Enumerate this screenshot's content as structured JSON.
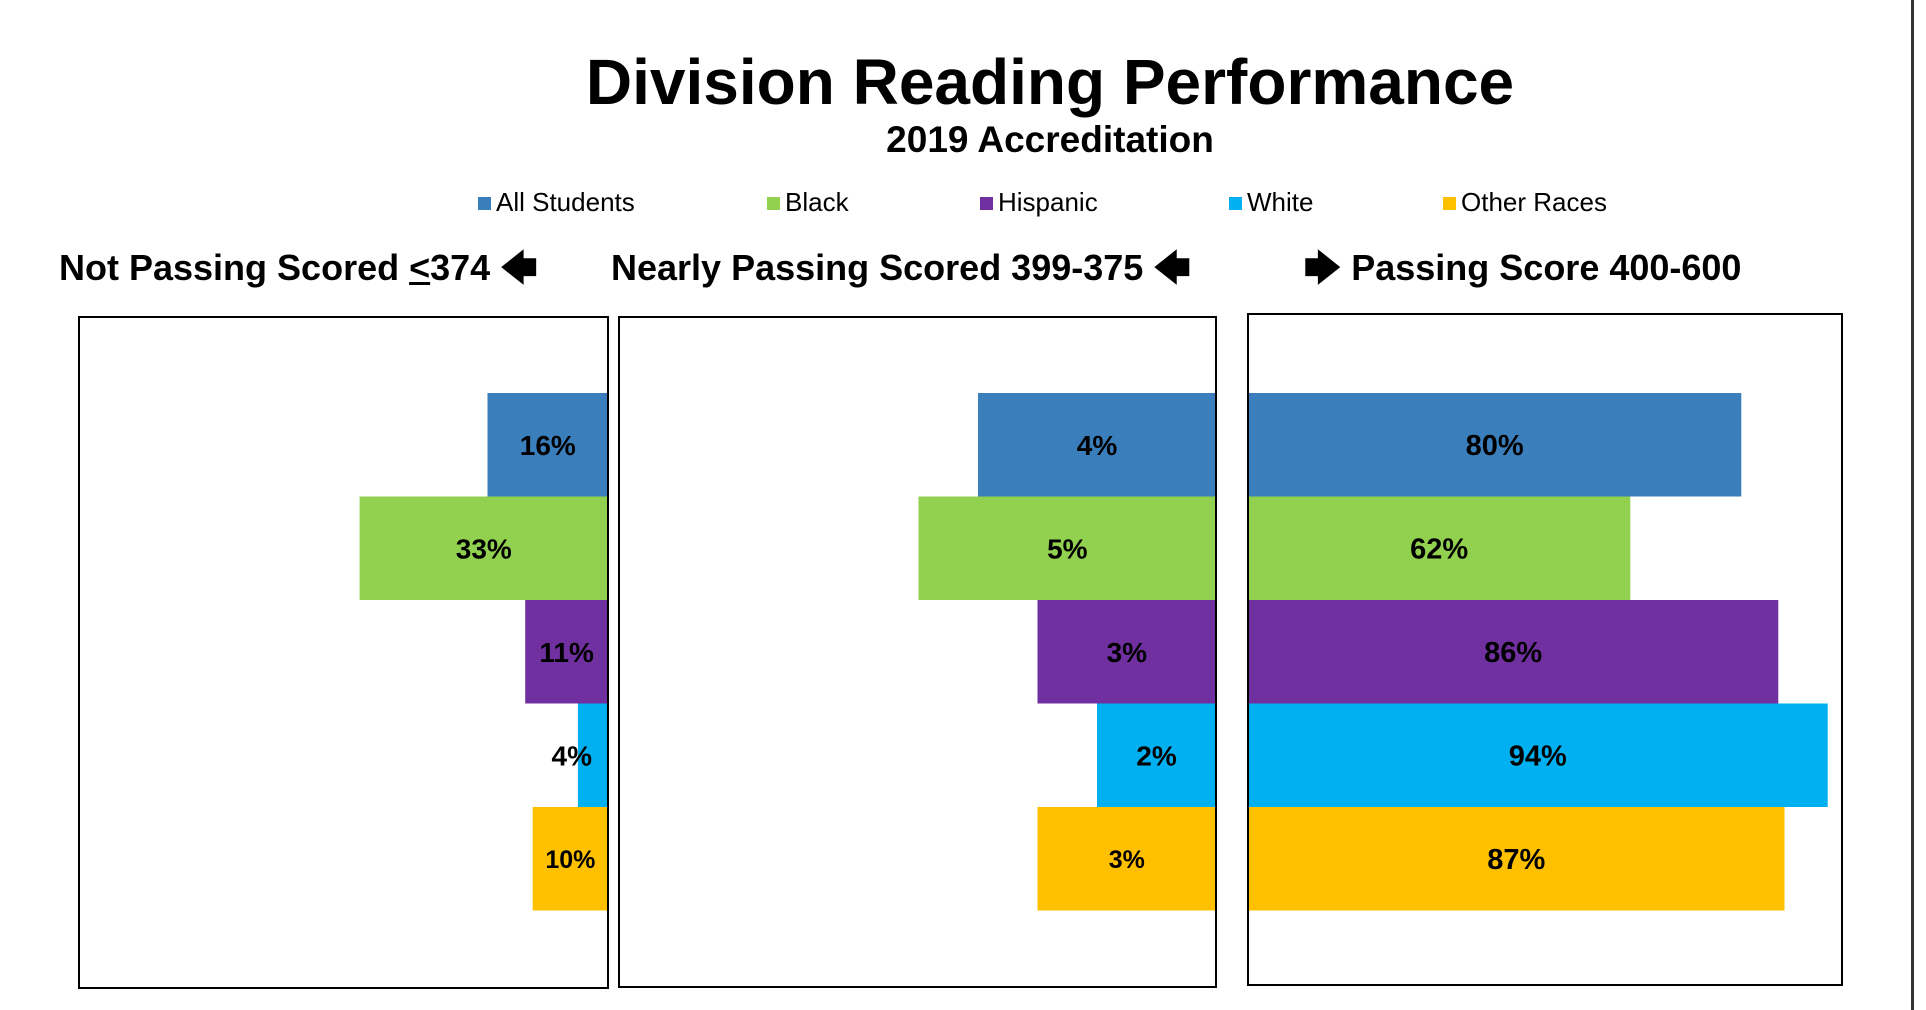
{
  "chart_data": {
    "type": "bar",
    "title": "Division Reading Performance",
    "subtitle": "2019 Accreditation",
    "categories": [
      "All Students",
      "Black",
      "Hispanic",
      "White",
      "Other Races"
    ],
    "legend": [
      {
        "name": "All Students",
        "color": "#3A7EBB"
      },
      {
        "name": "Black",
        "color": "#92D050"
      },
      {
        "name": "Hispanic",
        "color": "#7030A0"
      },
      {
        "name": "White",
        "color": "#00B0F0"
      },
      {
        "name": "Other Races",
        "color": "#FFC000"
      }
    ],
    "panels": [
      {
        "heading_pre": "Not Passing Scored ",
        "heading_underlined": "<",
        "heading_post": "374",
        "arrow": "🡄",
        "direction": "left",
        "values": [
          16,
          33,
          11,
          4,
          10
        ],
        "labels": [
          "16%",
          "33%",
          "11%",
          "4%",
          "10%"
        ],
        "xlim": [
          0,
          70
        ]
      },
      {
        "heading_pre": "Nearly Passing Scored 399-375",
        "heading_underlined": "",
        "heading_post": "",
        "arrow": "🡄",
        "direction": "left",
        "values": [
          4,
          5,
          3,
          2,
          3
        ],
        "labels": [
          "4%",
          "5%",
          "3%",
          "2%",
          "3%"
        ],
        "xlim": [
          0,
          10
        ]
      },
      {
        "heading_pre": "Passing Score 400-600",
        "heading_underlined": "",
        "heading_post": "",
        "arrow": "🡆",
        "direction": "right",
        "values": [
          80,
          62,
          86,
          94,
          87
        ],
        "labels": [
          "80%",
          "62%",
          "86%",
          "94%",
          "87%"
        ],
        "xlim": [
          0,
          96
        ]
      }
    ]
  }
}
